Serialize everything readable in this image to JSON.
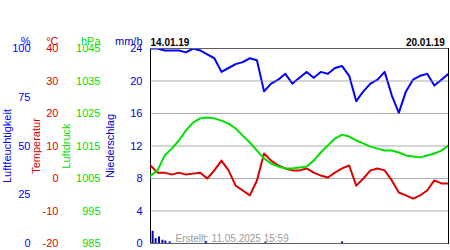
{
  "chart_data": [
    {
      "type": "line",
      "ylabel": "Luftfeuchtigkeit",
      "y_unit": "%",
      "color": "#0000ff",
      "caption": "Erstellt: 11.05.2025 15:59",
      "x": [
        0,
        0.167,
        0.333,
        0.5,
        0.667,
        0.833,
        1,
        1.167,
        1.333,
        1.5,
        1.667,
        1.833,
        2,
        2.167,
        2.333,
        2.5,
        2.667,
        2.833,
        3,
        3.167,
        3.333,
        3.5,
        3.667,
        3.833,
        4,
        4.167,
        4.333,
        4.5,
        4.667,
        4.833,
        5,
        5.167,
        5.333,
        5.5,
        5.667,
        5.833,
        6,
        6.167,
        6.333,
        6.5,
        6.667,
        6.833,
        7
      ],
      "values": [
        100,
        100,
        99,
        99,
        99,
        98,
        100,
        99,
        97,
        95,
        88,
        90,
        92,
        93,
        95,
        94,
        78,
        82,
        84,
        87,
        82,
        85,
        88,
        85,
        88,
        87,
        90,
        91,
        86,
        73,
        78,
        82,
        84,
        88,
        76,
        67,
        78,
        84,
        86,
        87,
        81,
        84,
        87
      ],
      "xlim": [
        0,
        7
      ],
      "xticks": [
        {
          "value": 0,
          "label": "14.01.19"
        },
        {
          "value": 6,
          "label": "20.01.19"
        }
      ],
      "ylim": [
        0,
        100
      ],
      "yticks": [
        0,
        25,
        50,
        75,
        100
      ]
    },
    {
      "type": "line",
      "ylabel": "Temperatur",
      "y_unit": "°C",
      "color": "#dd0000",
      "grid": true,
      "tick_labels": "y",
      "x": [
        0,
        0.167,
        0.333,
        0.5,
        0.667,
        0.833,
        1,
        1.167,
        1.333,
        1.5,
        1.667,
        1.833,
        2,
        2.167,
        2.333,
        2.5,
        2.667,
        2.833,
        3,
        3.167,
        3.333,
        3.5,
        3.667,
        3.833,
        4,
        4.167,
        4.333,
        4.5,
        4.667,
        4.833,
        5,
        5.167,
        5.333,
        5.5,
        5.667,
        5.833,
        6,
        6.167,
        6.333,
        6.5,
        6.667,
        6.833,
        7
      ],
      "values": [
        4.0,
        1.8,
        1.8,
        1.2,
        1.8,
        1.2,
        1.5,
        1.8,
        0,
        2.5,
        5.5,
        2.5,
        -2.2,
        -3.7,
        -5.2,
        -0.6,
        7.7,
        5.5,
        4.0,
        3.1,
        2.5,
        2.5,
        3.1,
        1.8,
        0.9,
        0.3,
        1.8,
        3.1,
        4.0,
        -2.2,
        0,
        2.5,
        3.1,
        2.5,
        -0.6,
        -4.3,
        -5.2,
        -6.2,
        -5.2,
        -3.7,
        -0.6,
        -1.5,
        -1.5
      ],
      "xlim": [
        0,
        7
      ],
      "ylim": [
        -20,
        40
      ],
      "yticks": [
        -20,
        -10,
        0,
        10,
        20,
        30,
        40
      ]
    },
    {
      "type": "line",
      "ylabel": "Luftdruck",
      "y_unit": "hPa",
      "color": "#00e000",
      "tick_labels": "y",
      "x": [
        0,
        0.167,
        0.333,
        0.5,
        0.667,
        0.833,
        1,
        1.167,
        1.333,
        1.5,
        1.667,
        1.833,
        2,
        2.167,
        2.333,
        2.5,
        2.667,
        2.833,
        3,
        3.167,
        3.333,
        3.5,
        3.667,
        3.833,
        4,
        4.167,
        4.333,
        4.5,
        4.667,
        4.833,
        5,
        5.167,
        5.333,
        5.5,
        5.667,
        5.833,
        6,
        6.167,
        6.333,
        6.5,
        6.667,
        6.833,
        7
      ],
      "values": [
        1005.9,
        1007.5,
        1012.1,
        1014.2,
        1016.7,
        1019.8,
        1022.2,
        1023.5,
        1023.8,
        1023.5,
        1022.8,
        1021.9,
        1020.4,
        1018.2,
        1016.1,
        1013.6,
        1011.2,
        1009.6,
        1008.7,
        1008.1,
        1008.1,
        1008.4,
        1008.7,
        1010.5,
        1013.0,
        1015.2,
        1017.3,
        1018.5,
        1017.9,
        1016.7,
        1015.8,
        1014.8,
        1014.2,
        1013.6,
        1013.6,
        1013.0,
        1012.1,
        1011.8,
        1011.5,
        1012.1,
        1012.7,
        1013.6,
        1015.2
      ],
      "xlim": [
        0,
        7
      ],
      "ylim": [
        985,
        1045
      ],
      "yticks": [
        985,
        995,
        1005,
        1015,
        1025,
        1035,
        1045
      ]
    },
    {
      "type": "bar",
      "ylabel": "Niederschlag",
      "y_unit": "mm/h",
      "color": "#0000cc",
      "tick_labels": "y",
      "x": [
        0.05,
        0.12,
        0.2,
        0.28,
        0.35,
        0.45,
        1.3,
        2.7,
        4.5
      ],
      "values": [
        1.5,
        0.6,
        0.8,
        0.4,
        0.3,
        0.2,
        0.2,
        0.1,
        0.2
      ],
      "xlim": [
        0,
        7
      ],
      "ylim": [
        0,
        24
      ],
      "yticks": [
        0,
        4,
        8,
        12,
        16,
        20,
        24
      ]
    }
  ]
}
